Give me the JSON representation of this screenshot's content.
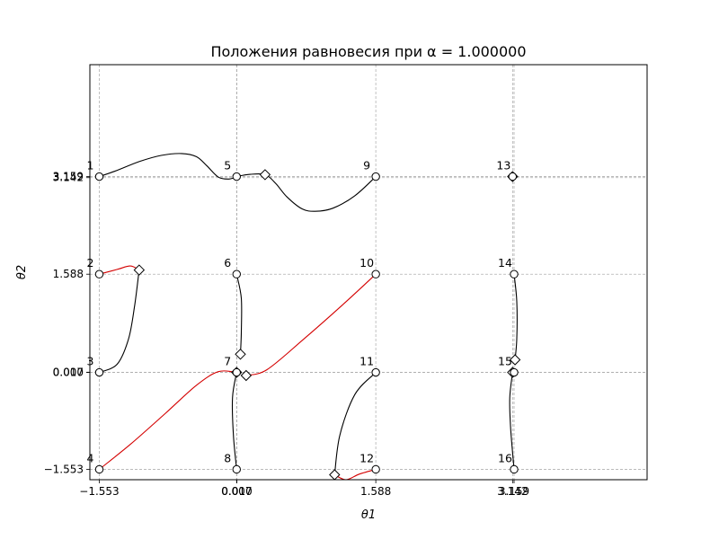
{
  "chart_data": {
    "type": "line",
    "title": "Положения равновесия при α = 1.000000",
    "xlabel": "θ1",
    "ylabel": "θ2",
    "xlim": [
      -1.66,
      4.67
    ],
    "ylim": [
      -1.72,
      4.96
    ],
    "grid": true,
    "x_ticks": [
      {
        "value": -1.553,
        "label": "−1.553"
      },
      {
        "value": 0.007,
        "label": "0.007"
      },
      {
        "value": 0.01,
        "label": "0.010"
      },
      {
        "value": 1.588,
        "label": "1.588"
      },
      {
        "value": 3.142,
        "label": "3.142"
      },
      {
        "value": 3.159,
        "label": "3.159"
      }
    ],
    "y_ticks": [
      {
        "value": -1.553,
        "label": "−1.553"
      },
      {
        "value": 0.007,
        "label": "0.007"
      },
      {
        "value": 0.01,
        "label": "0.010"
      },
      {
        "value": 1.588,
        "label": "1.588"
      },
      {
        "value": 3.142,
        "label": "3.142"
      },
      {
        "value": 3.159,
        "label": "3.159"
      }
    ],
    "points": [
      {
        "label": "1",
        "x": -1.553,
        "y": 3.159
      },
      {
        "label": "2",
        "x": -1.553,
        "y": 1.588
      },
      {
        "label": "3",
        "x": -1.553,
        "y": 0.007
      },
      {
        "label": "4",
        "x": -1.553,
        "y": -1.553
      },
      {
        "label": "5",
        "x": 0.007,
        "y": 3.159
      },
      {
        "label": "6",
        "x": 0.007,
        "y": 1.588
      },
      {
        "label": "7",
        "x": 0.007,
        "y": 0.007
      },
      {
        "label": "8",
        "x": 0.007,
        "y": -1.553
      },
      {
        "label": "9",
        "x": 1.588,
        "y": 3.159
      },
      {
        "label": "10",
        "x": 1.588,
        "y": 1.588
      },
      {
        "label": "11",
        "x": 1.588,
        "y": 0.007
      },
      {
        "label": "12",
        "x": 1.588,
        "y": -1.553
      },
      {
        "label": "13",
        "x": 3.142,
        "y": 3.159
      },
      {
        "label": "14",
        "x": 3.159,
        "y": 1.588
      },
      {
        "label": "15",
        "x": 3.159,
        "y": 0.007
      },
      {
        "label": "16",
        "x": 3.159,
        "y": -1.553
      }
    ],
    "end_markers": [
      {
        "x": -1.1,
        "y": 1.655
      },
      {
        "x": 0.33,
        "y": 3.19
      },
      {
        "x": 3.142,
        "y": 3.159
      },
      {
        "x": 0.05,
        "y": 0.3
      },
      {
        "x": 0.007,
        "y": 0.007
      },
      {
        "x": 0.115,
        "y": -0.043
      },
      {
        "x": 1.12,
        "y": -1.64
      },
      {
        "x": 3.17,
        "y": 0.21
      },
      {
        "x": 3.142,
        "y": 0.007
      }
    ],
    "trajectories": [
      {
        "color": "#000000",
        "points": [
          [
            -1.553,
            3.159
          ],
          [
            -1.35,
            3.26
          ],
          [
            -1.1,
            3.4
          ],
          [
            -0.85,
            3.5
          ],
          [
            -0.62,
            3.53
          ],
          [
            -0.45,
            3.48
          ],
          [
            -0.33,
            3.33
          ],
          [
            -0.2,
            3.15
          ],
          [
            -0.08,
            3.12
          ],
          [
            0.007,
            3.159
          ]
        ]
      },
      {
        "color": "#000000",
        "points": [
          [
            0.007,
            3.159
          ],
          [
            0.16,
            3.195
          ],
          [
            0.33,
            3.19
          ],
          [
            0.45,
            3.05
          ],
          [
            0.58,
            2.83
          ],
          [
            0.75,
            2.64
          ],
          [
            0.9,
            2.6
          ],
          [
            1.1,
            2.65
          ],
          [
            1.35,
            2.85
          ],
          [
            1.588,
            3.159
          ]
        ]
      },
      {
        "color": "#d40000",
        "points": [
          [
            -1.553,
            1.588
          ],
          [
            -1.35,
            1.665
          ],
          [
            -1.2,
            1.72
          ],
          [
            -1.1,
            1.655
          ]
        ]
      },
      {
        "color": "#000000",
        "points": [
          [
            -1.553,
            0.007
          ],
          [
            -1.35,
            0.14
          ],
          [
            -1.22,
            0.55
          ],
          [
            -1.15,
            1.1
          ],
          [
            -1.1,
            1.655
          ]
        ]
      },
      {
        "color": "#d40000",
        "points": [
          [
            -1.553,
            -1.553
          ],
          [
            -1.2,
            -1.15
          ],
          [
            -0.8,
            -0.65
          ],
          [
            -0.45,
            -0.2
          ],
          [
            -0.2,
            0.02
          ],
          [
            0.007,
            0.007
          ]
        ]
      },
      {
        "color": "#d40000",
        "points": [
          [
            0.115,
            -0.043
          ],
          [
            0.35,
            0.05
          ],
          [
            0.75,
            0.52
          ],
          [
            1.2,
            1.08
          ],
          [
            1.588,
            1.588
          ]
        ]
      },
      {
        "color": "#000000",
        "points": [
          [
            0.007,
            1.588
          ],
          [
            0.06,
            1.2
          ],
          [
            0.06,
            0.65
          ],
          [
            0.05,
            0.3
          ]
        ]
      },
      {
        "color": "#000000",
        "points": [
          [
            0.007,
            -1.553
          ],
          [
            -0.03,
            -1.0
          ],
          [
            -0.04,
            -0.4
          ],
          [
            0.007,
            0.007
          ]
        ]
      },
      {
        "color": "#000000",
        "points": [
          [
            1.588,
            0.007
          ],
          [
            1.35,
            -0.35
          ],
          [
            1.18,
            -1.0
          ],
          [
            1.12,
            -1.64
          ]
        ]
      },
      {
        "color": "#d40000",
        "points": [
          [
            1.588,
            -1.553
          ],
          [
            1.4,
            -1.63
          ],
          [
            1.25,
            -1.72
          ],
          [
            1.12,
            -1.64
          ]
        ]
      },
      {
        "color": "#000000",
        "points": [
          [
            3.159,
            1.588
          ],
          [
            3.19,
            1.15
          ],
          [
            3.19,
            0.55
          ],
          [
            3.17,
            0.21
          ]
        ]
      },
      {
        "color": "#000000",
        "points": [
          [
            3.159,
            -1.553
          ],
          [
            3.12,
            -0.9
          ],
          [
            3.11,
            -0.4
          ],
          [
            3.142,
            0.007
          ]
        ]
      }
    ]
  }
}
